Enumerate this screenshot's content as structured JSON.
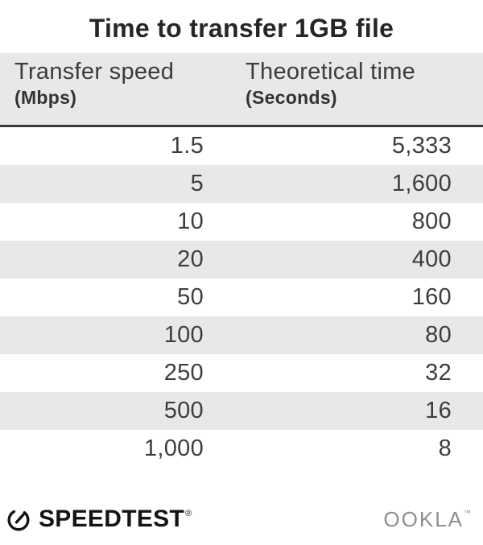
{
  "title": "Time to transfer 1GB file",
  "table": {
    "header": [
      {
        "label": "Transfer speed",
        "unit": "(Mbps)"
      },
      {
        "label": "Theoretical time",
        "unit": "(Seconds)"
      }
    ],
    "rows": [
      {
        "speed": "1.5",
        "time": "5,333"
      },
      {
        "speed": "5",
        "time": "1,600"
      },
      {
        "speed": "10",
        "time": "800"
      },
      {
        "speed": "20",
        "time": "400"
      },
      {
        "speed": "50",
        "time": "160"
      },
      {
        "speed": "100",
        "time": "80"
      },
      {
        "speed": "250",
        "time": "32"
      },
      {
        "speed": "500",
        "time": "16"
      },
      {
        "speed": "1,000",
        "time": "8"
      }
    ]
  },
  "footer": {
    "speedtest": "SPEEDTEST",
    "speedtest_mark": "®",
    "ookla": "OOKLA",
    "ookla_mark": "™",
    "gauge_icon": "speedtest-gauge-icon"
  },
  "colors": {
    "stripe": "#e8e7ea",
    "header_bg": "#e8e7ea",
    "header_border": "#3a3a3a",
    "title_text": "#262626",
    "body_text": "#3d3d3d",
    "speedtest_brand": "#141414",
    "ookla_brand": "#8e8e8e",
    "background": "#ffffff"
  },
  "chart_data": {
    "type": "table",
    "title": "Time to transfer 1GB file",
    "columns": [
      "Transfer speed (Mbps)",
      "Theoretical time (Seconds)"
    ],
    "rows": [
      [
        1.5,
        5333
      ],
      [
        5,
        1600
      ],
      [
        10,
        800
      ],
      [
        20,
        400
      ],
      [
        50,
        160
      ],
      [
        100,
        80
      ],
      [
        250,
        32
      ],
      [
        500,
        16
      ],
      [
        1000,
        8
      ]
    ],
    "layout_hints": {
      "striped_rows": true,
      "value_alignment": "right",
      "source_brands": [
        "Speedtest",
        "Ookla"
      ]
    }
  }
}
